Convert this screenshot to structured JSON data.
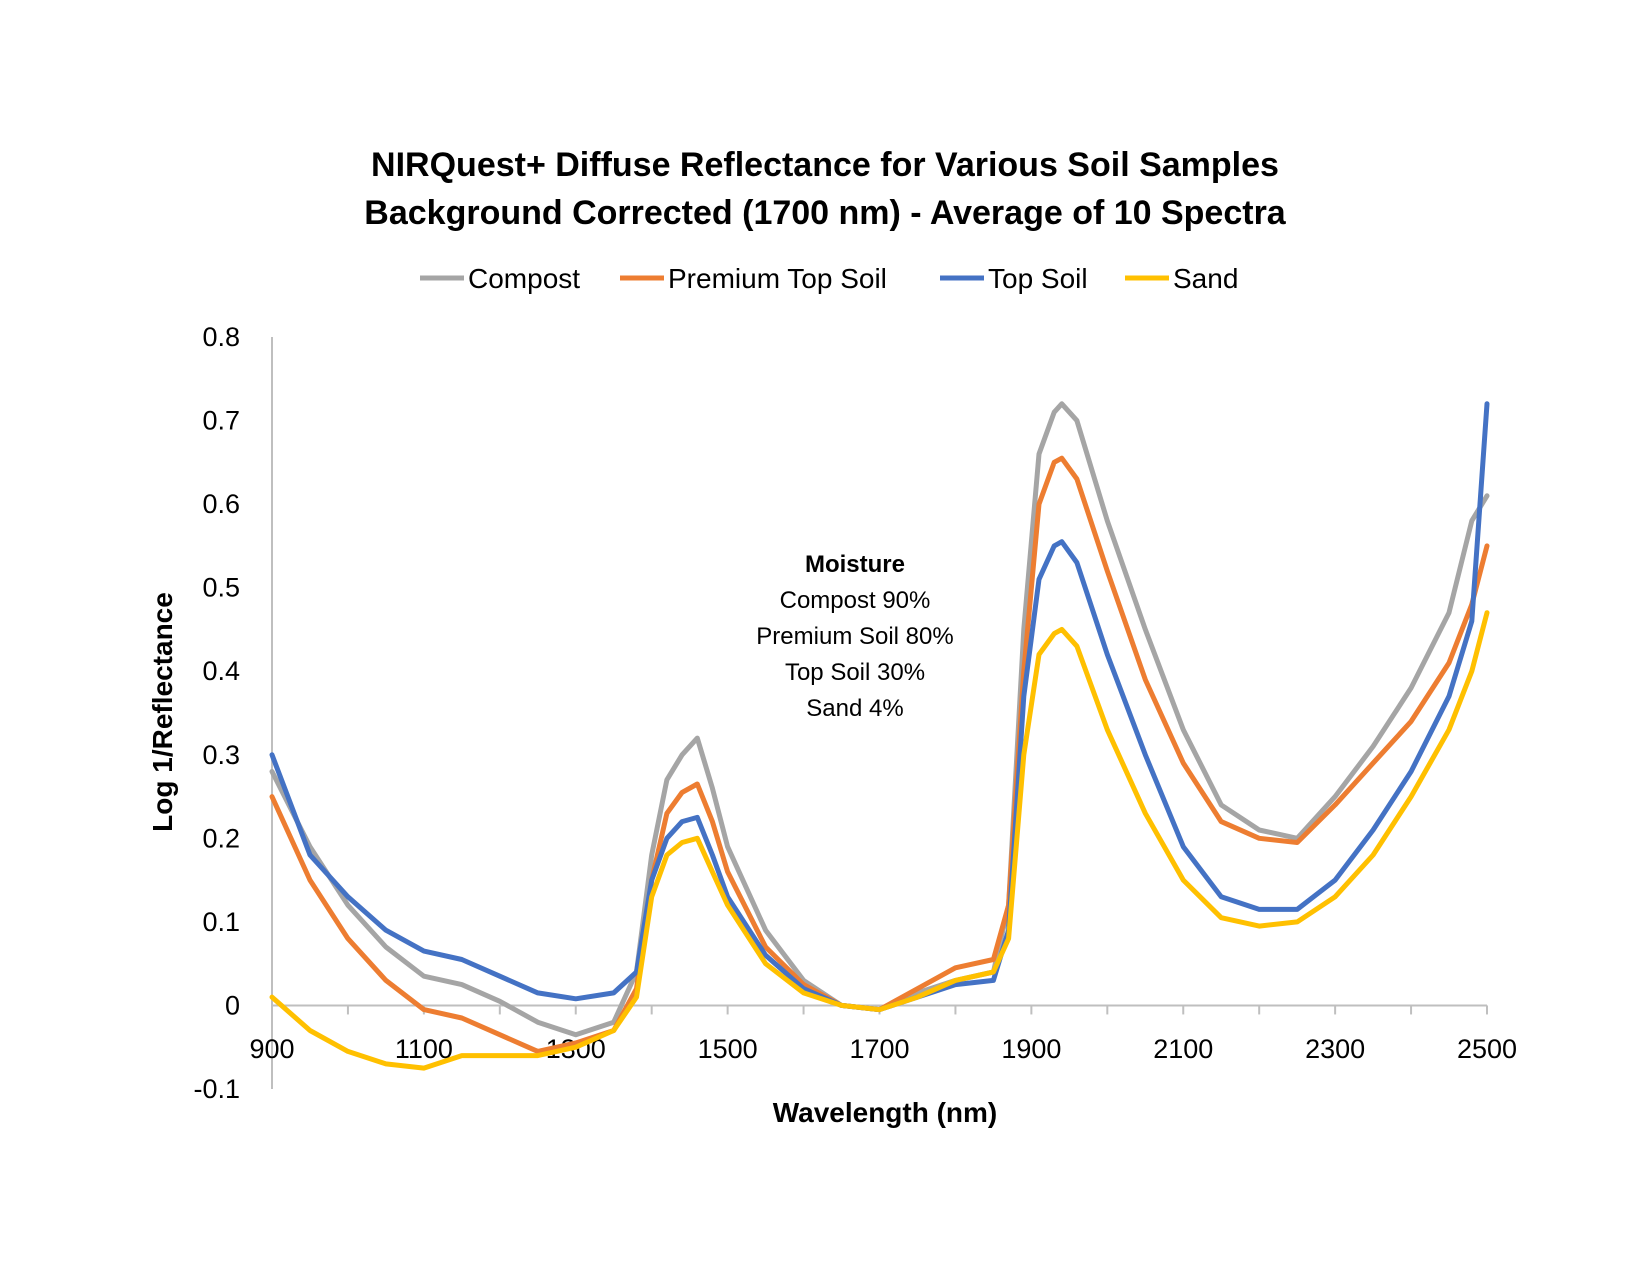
{
  "chart_data": {
    "type": "line",
    "title_lines": [
      "NIRQuest+ Diffuse Reflectance for Various Soil Samples",
      "Background Corrected (1700 nm) - Average of 10 Spectra"
    ],
    "xlabel": "Wavelength (nm)",
    "ylabel": "Log 1/Reflectance",
    "xlim": [
      900,
      2500
    ],
    "ylim": [
      -0.1,
      0.8
    ],
    "x_ticks": [
      900,
      1100,
      1300,
      1500,
      1700,
      1900,
      2100,
      2300,
      2500
    ],
    "x_tick_labels": [
      "900",
      "1100",
      "1300",
      "1500",
      "1700",
      "1900",
      "2100",
      "2300",
      "2500"
    ],
    "y_ticks": [
      -0.1,
      0,
      0.1,
      0.2,
      0.3,
      0.4,
      0.5,
      0.6,
      0.7,
      0.8
    ],
    "y_tick_labels": [
      "-0.1",
      "0",
      "0.1",
      "0.2",
      "0.3",
      "0.4",
      "0.5",
      "0.6",
      "0.7",
      "0.8"
    ],
    "grid": false,
    "legend_position": "top-center",
    "x": [
      900,
      950,
      1000,
      1050,
      1100,
      1150,
      1200,
      1250,
      1300,
      1350,
      1380,
      1400,
      1420,
      1440,
      1460,
      1480,
      1500,
      1550,
      1600,
      1650,
      1700,
      1750,
      1800,
      1850,
      1870,
      1890,
      1910,
      1930,
      1940,
      1960,
      2000,
      2050,
      2100,
      2150,
      2200,
      2250,
      2300,
      2350,
      2400,
      2450,
      2480,
      2500
    ],
    "series": [
      {
        "name": "Compost",
        "color": "#A5A5A5",
        "values": [
          0.28,
          0.19,
          0.12,
          0.07,
          0.035,
          0.025,
          0.005,
          -0.02,
          -0.035,
          -0.02,
          0.04,
          0.18,
          0.27,
          0.3,
          0.32,
          0.26,
          0.19,
          0.09,
          0.03,
          0.0,
          -0.005,
          0.015,
          0.03,
          0.04,
          0.12,
          0.45,
          0.66,
          0.71,
          0.72,
          0.7,
          0.58,
          0.45,
          0.33,
          0.24,
          0.21,
          0.2,
          0.25,
          0.31,
          0.38,
          0.47,
          0.58,
          0.61
        ]
      },
      {
        "name": "Premium Top Soil",
        "color": "#ED7D31",
        "values": [
          0.25,
          0.15,
          0.08,
          0.03,
          -0.005,
          -0.015,
          -0.035,
          -0.055,
          -0.045,
          -0.03,
          0.02,
          0.15,
          0.23,
          0.255,
          0.265,
          0.22,
          0.16,
          0.07,
          0.025,
          0.0,
          -0.005,
          0.02,
          0.045,
          0.055,
          0.12,
          0.4,
          0.6,
          0.65,
          0.655,
          0.63,
          0.52,
          0.39,
          0.29,
          0.22,
          0.2,
          0.195,
          0.24,
          0.29,
          0.34,
          0.41,
          0.48,
          0.55
        ]
      },
      {
        "name": "Top Soil",
        "color": "#4472C4",
        "values": [
          0.3,
          0.18,
          0.13,
          0.09,
          0.065,
          0.055,
          0.035,
          0.015,
          0.008,
          0.015,
          0.04,
          0.15,
          0.2,
          0.22,
          0.225,
          0.18,
          0.13,
          0.06,
          0.02,
          0.0,
          -0.005,
          0.01,
          0.025,
          0.03,
          0.09,
          0.37,
          0.51,
          0.55,
          0.555,
          0.53,
          0.42,
          0.3,
          0.19,
          0.13,
          0.115,
          0.115,
          0.15,
          0.21,
          0.28,
          0.37,
          0.46,
          0.72
        ]
      },
      {
        "name": "Sand",
        "color": "#FFC000",
        "values": [
          0.01,
          -0.03,
          -0.055,
          -0.07,
          -0.075,
          -0.06,
          -0.06,
          -0.06,
          -0.05,
          -0.03,
          0.01,
          0.13,
          0.18,
          0.195,
          0.2,
          0.16,
          0.12,
          0.05,
          0.015,
          0.0,
          -0.005,
          0.01,
          0.03,
          0.04,
          0.08,
          0.3,
          0.42,
          0.445,
          0.45,
          0.43,
          0.33,
          0.23,
          0.15,
          0.105,
          0.095,
          0.1,
          0.13,
          0.18,
          0.25,
          0.33,
          0.4,
          0.47
        ]
      }
    ],
    "annotation": {
      "title": "Moisture",
      "lines": [
        "Compost 90%",
        "Premium Soil 80%",
        "Top Soil 30%",
        "Sand 4%"
      ]
    }
  }
}
